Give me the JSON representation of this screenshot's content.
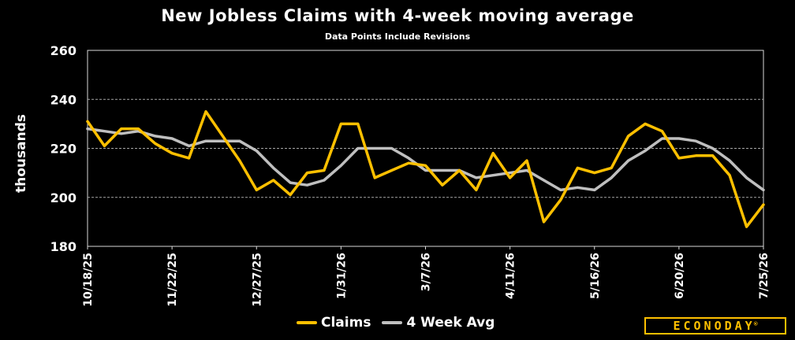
{
  "colors": {
    "claims": "#FFC000",
    "avg": "#BFBFBF",
    "background": "#000000",
    "grid": "#A6A6A6"
  },
  "brand": {
    "name": "ECONODAY",
    "mark": "®"
  },
  "chart_data": {
    "type": "line",
    "title": "New Jobless Claims with 4-week moving average",
    "subtitle": "Data Points Include Revisions",
    "xlabel": "",
    "ylabel": "thousands",
    "ylim": [
      180,
      260
    ],
    "yticks": [
      "180",
      "200",
      "220",
      "240",
      "260"
    ],
    "grid": "horizontal",
    "legend_position": "bottom",
    "x": [
      "10/18/25",
      "10/25/25",
      "11/1/25",
      "11/8/25",
      "11/15/25",
      "11/22/25",
      "11/29/25",
      "12/6/25",
      "12/13/25",
      "12/20/25",
      "12/27/25",
      "1/3/26",
      "1/10/26",
      "1/17/26",
      "1/24/26",
      "1/31/26",
      "2/7/26",
      "2/14/26",
      "2/21/26",
      "2/28/26",
      "3/7/26",
      "3/14/26",
      "3/21/26",
      "3/28/26",
      "4/4/26",
      "4/11/26",
      "4/18/26",
      "4/25/26",
      "5/2/26",
      "5/9/26",
      "5/16/26",
      "5/23/26",
      "5/30/26",
      "6/6/26",
      "6/13/26",
      "6/20/26",
      "6/27/26",
      "7/4/26",
      "7/11/26",
      "7/18/26",
      "7/25/26"
    ],
    "xtick_labels": [
      "10/18/25",
      "11/22/25",
      "12/27/25",
      "1/31/26",
      "3/7/26",
      "4/11/26",
      "5/16/26",
      "6/20/26",
      "7/25/26"
    ],
    "xtick_every": 5,
    "series": [
      {
        "name": "Claims",
        "values": [
          231,
          221,
          228,
          228,
          222,
          218,
          216,
          235,
          225,
          215,
          203,
          207,
          201,
          210,
          211,
          230,
          230,
          208,
          211,
          214,
          213,
          205,
          211,
          203,
          218,
          208,
          215,
          190,
          199,
          212,
          210,
          212,
          225,
          230,
          227,
          216,
          217,
          217,
          209,
          188,
          197
        ]
      },
      {
        "name": "4 Week Avg",
        "values": [
          228,
          227,
          226,
          227,
          225,
          224,
          221,
          223,
          223,
          223,
          219,
          212,
          206,
          205,
          207,
          213,
          220,
          220,
          220,
          216,
          211,
          211,
          211,
          208,
          209,
          210,
          211,
          207,
          203,
          204,
          203,
          208,
          215,
          219,
          224,
          224,
          223,
          220,
          215,
          208,
          203
        ]
      }
    ]
  }
}
